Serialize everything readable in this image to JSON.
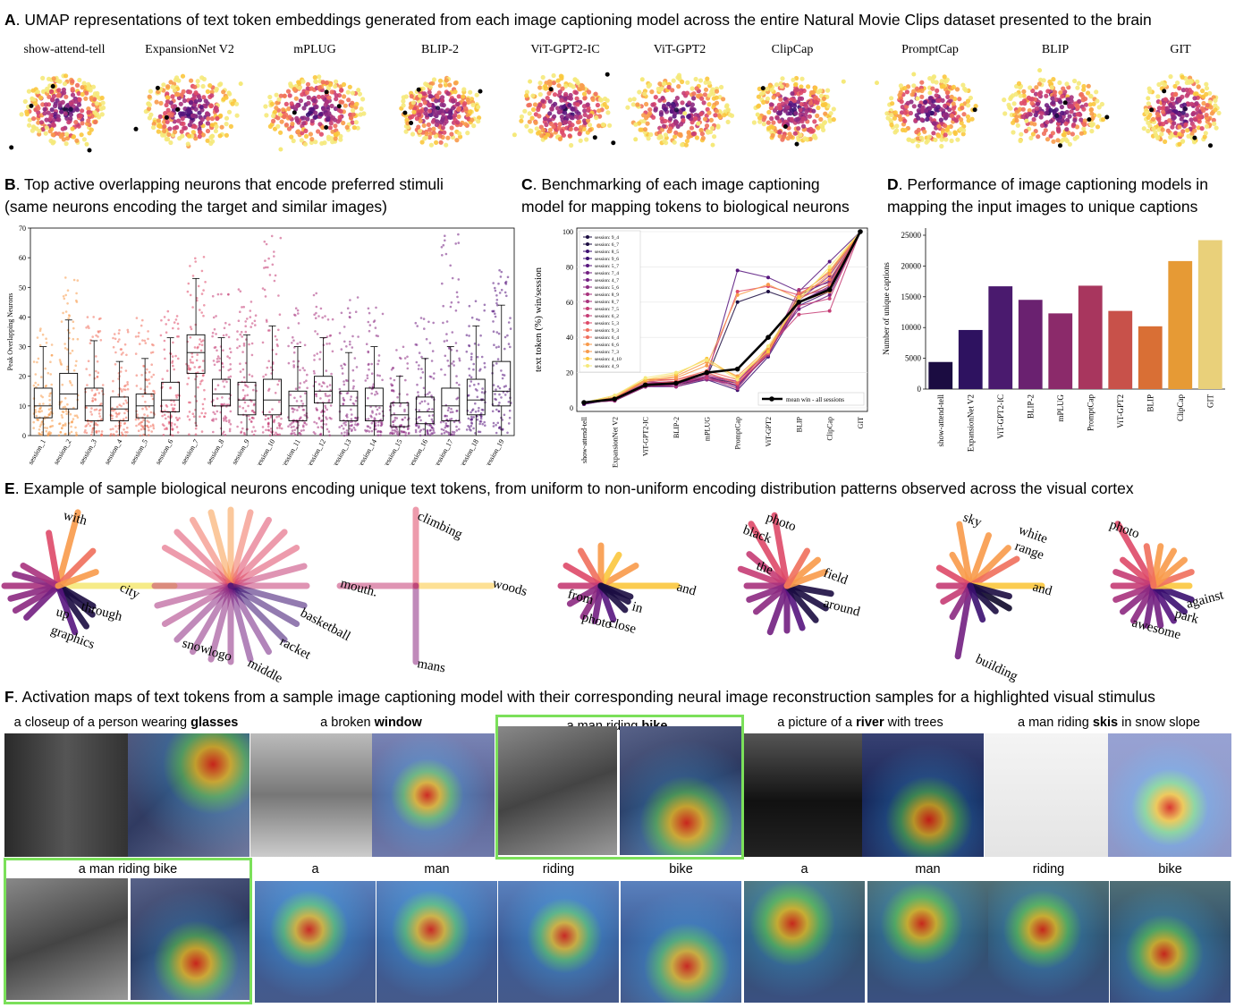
{
  "panel_a": {
    "letter": "A",
    "title": ". UMAP representations of text token embeddings generated from each image captioning model across the entire Natural Movie Clips dataset presented to the brain",
    "models": [
      "show-attend-tell",
      "ExpansionNet V2",
      "mPLUG",
      "BLIP-2",
      "ViT-GPT2-IC",
      "ViT-GPT2",
      "ClipCap",
      "PromptCap",
      "BLIP",
      "GIT"
    ]
  },
  "panel_b": {
    "letter": "B",
    "title_line1": ". Top active overlapping neurons that encode preferred stimuli",
    "title_line2": "(same neurons encoding the target and similar images)",
    "chart_data": {
      "type": "box",
      "ylabel": "Peak Overlapping Neurons",
      "ylim": [
        0,
        70
      ],
      "yticks": [
        0,
        10,
        20,
        30,
        40,
        50,
        60,
        70
      ],
      "categories": [
        "session_1",
        "session_2",
        "session_3",
        "session_4",
        "session_5",
        "session_6",
        "session_7",
        "session_8",
        "session_9",
        "session_10",
        "session_11",
        "session_12",
        "session_13",
        "session_14",
        "session_15",
        "session_16",
        "session_17",
        "session_18",
        "session_19"
      ],
      "q1": [
        6,
        9,
        5,
        5,
        6,
        8,
        21,
        10,
        7,
        7,
        5,
        11,
        5,
        5,
        3,
        4,
        5,
        7,
        10
      ],
      "median": [
        10,
        14,
        10,
        9,
        10,
        12,
        28,
        14,
        12,
        12,
        10,
        15,
        10,
        10,
        7,
        8,
        10,
        12,
        15
      ],
      "q3": [
        16,
        21,
        16,
        13,
        14,
        18,
        34,
        19,
        18,
        19,
        15,
        20,
        15,
        16,
        11,
        13,
        16,
        19,
        25
      ],
      "whisker_low": [
        0,
        0,
        0,
        0,
        0,
        0,
        3,
        0,
        0,
        0,
        0,
        0,
        0,
        0,
        0,
        0,
        0,
        0,
        0
      ],
      "whisker_high": [
        30,
        39,
        32,
        25,
        26,
        33,
        53,
        33,
        34,
        37,
        30,
        33,
        28,
        30,
        20,
        26,
        30,
        37,
        44
      ],
      "max": [
        38,
        54,
        40,
        36,
        40,
        42,
        61,
        48,
        50,
        69,
        47,
        50,
        47,
        44,
        30,
        40,
        69,
        47,
        56
      ]
    }
  },
  "panel_c": {
    "letter": "C",
    "title_line1": ". Benchmarking of each image captioning",
    "title_line2": "model for mapping tokens to biological neurons",
    "chart_data": {
      "type": "line",
      "ylabel": "text token (%) win/session",
      "ylim": [
        0,
        100
      ],
      "yticks": [
        0,
        20,
        40,
        60,
        80,
        100
      ],
      "categories": [
        "show-attend-tell",
        "ExpansionNet V2",
        "ViT-GPT2-IC",
        "BLIP-2",
        "mPLUG",
        "PromptCap",
        "ViT-GPT2",
        "BLIP",
        "ClipCap",
        "GIT"
      ],
      "legend_entries": [
        "session: 9_4",
        "session: 6_7",
        "session: 8_5",
        "session: 9_6",
        "session: 5_7",
        "session: 7_4",
        "session: 4_7",
        "session: 5_6",
        "session: 8_9",
        "session: 8_7",
        "session: 7_5",
        "session: 6_2",
        "session: 5_3",
        "session: 9_3",
        "session: 6_4",
        "session: 6_6",
        "session: 7_3",
        "session: 4_10",
        "session: 4_9"
      ],
      "mean_series": {
        "name": "mean win - all sessions",
        "values": [
          3,
          5,
          13,
          14,
          20,
          22,
          40,
          60,
          67,
          100
        ]
      },
      "series": [
        {
          "values": [
            3,
            4,
            12,
            13,
            17,
            14,
            30,
            62,
            70,
            100
          ]
        },
        {
          "values": [
            3,
            5,
            13,
            13,
            17,
            60,
            66,
            60,
            68,
            100
          ]
        },
        {
          "values": [
            2,
            5,
            14,
            14,
            18,
            12,
            32,
            64,
            72,
            100
          ]
        },
        {
          "values": [
            3,
            6,
            12,
            12,
            16,
            10,
            29,
            58,
            66,
            100
          ]
        },
        {
          "values": [
            3,
            5,
            13,
            14,
            17,
            78,
            74,
            66,
            83,
            100
          ]
        },
        {
          "values": [
            3,
            4,
            14,
            15,
            17,
            13,
            31,
            60,
            69,
            100
          ]
        },
        {
          "values": [
            2,
            5,
            12,
            13,
            18,
            15,
            33,
            56,
            64,
            100
          ]
        },
        {
          "values": [
            3,
            5,
            15,
            14,
            16,
            13,
            30,
            61,
            75,
            100
          ]
        },
        {
          "values": [
            3,
            6,
            13,
            12,
            17,
            11,
            32,
            67,
            71,
            100
          ]
        },
        {
          "values": [
            3,
            4,
            12,
            13,
            18,
            14,
            30,
            63,
            68,
            100
          ]
        },
        {
          "values": [
            3,
            5,
            14,
            15,
            17,
            13,
            34,
            53,
            55,
            100
          ]
        },
        {
          "values": [
            3,
            5,
            13,
            14,
            19,
            15,
            32,
            58,
            62,
            100
          ]
        },
        {
          "values": [
            3,
            5,
            16,
            16,
            20,
            66,
            69,
            64,
            77,
            100
          ]
        },
        {
          "values": [
            3,
            6,
            15,
            16,
            21,
            16,
            33,
            62,
            70,
            100
          ]
        },
        {
          "values": [
            3,
            5,
            13,
            15,
            20,
            14,
            31,
            65,
            73,
            100
          ]
        },
        {
          "values": [
            3,
            6,
            16,
            17,
            24,
            64,
            70,
            62,
            76,
            100
          ]
        },
        {
          "values": [
            3,
            6,
            15,
            18,
            26,
            18,
            34,
            60,
            66,
            100
          ]
        },
        {
          "values": [
            3,
            7,
            16,
            19,
            28,
            17,
            32,
            63,
            78,
            100
          ]
        },
        {
          "values": [
            3,
            7,
            17,
            20,
            27,
            16,
            35,
            61,
            80,
            100
          ]
        }
      ]
    }
  },
  "panel_d": {
    "letter": "D",
    "title_line1": ". Performance of image captioning models in",
    "title_line2": "mapping the input images to unique captions",
    "chart_data": {
      "type": "bar",
      "ylabel": "Number of unique captions",
      "ylim": [
        0,
        25000
      ],
      "yticks": [
        0,
        5000,
        10000,
        15000,
        20000,
        25000
      ],
      "categories": [
        "show-attend-tell",
        "ExpansionNet V2",
        "ViT-GPT2-IC",
        "BLIP-2",
        "mPLUG",
        "PromptCap",
        "ViT-GPT2",
        "BLIP",
        "ClipCap",
        "GIT"
      ],
      "values": [
        4400,
        9600,
        16700,
        14500,
        12300,
        16800,
        12700,
        10200,
        20800,
        24200
      ],
      "colors": [
        "#1b0c41",
        "#2e1260",
        "#4a1a6e",
        "#6a2170",
        "#8b2a6a",
        "#a8365e",
        "#c8514a",
        "#d96f35",
        "#e69a35",
        "#e9d07a"
      ]
    }
  },
  "panel_e": {
    "letter": "E",
    "title": ". Example of sample biological neurons encoding unique text tokens, from uniform to non-uniform encoding distribution patterns observed across the visual cortex",
    "words": {
      "g1": [
        "with",
        "city",
        "through",
        "up",
        "graphics"
      ],
      "g2": [
        "basketball",
        "racket",
        "middle",
        "logo",
        "snow"
      ],
      "g3": [
        "climbing",
        "woods",
        "mans",
        "mouth."
      ],
      "g4": [
        "and",
        "in",
        "close",
        "photo",
        "from"
      ],
      "g5": [
        "photo",
        "black",
        "the",
        "field",
        "around"
      ],
      "g6": [
        "sky",
        "white",
        "range",
        "and",
        "building"
      ],
      "g7": [
        "photo",
        "against",
        "park",
        "awesome"
      ]
    }
  },
  "panel_f": {
    "letter": "F",
    "title": ". Activation maps of text tokens from a sample image captioning model with their corresponding neural image reconstruction samples for a highlighted visual stimulus",
    "captions_top": [
      {
        "pre": "a closeup of a person wearing ",
        "bold": "glasses",
        "post": ""
      },
      {
        "pre": "a broken ",
        "bold": "window",
        "post": ""
      },
      {
        "pre": "a man riding ",
        "bold": "bike",
        "post": ""
      },
      {
        "pre": "a picture of a ",
        "bold": "river",
        "post": " with trees"
      },
      {
        "pre": "a man riding ",
        "bold": "skis",
        "post": " in snow slope"
      }
    ],
    "caption_bottom_left": "a man riding bike",
    "tokens_row": [
      "a",
      "man",
      "riding",
      "bike",
      "a",
      "man",
      "riding",
      "bike"
    ]
  }
}
